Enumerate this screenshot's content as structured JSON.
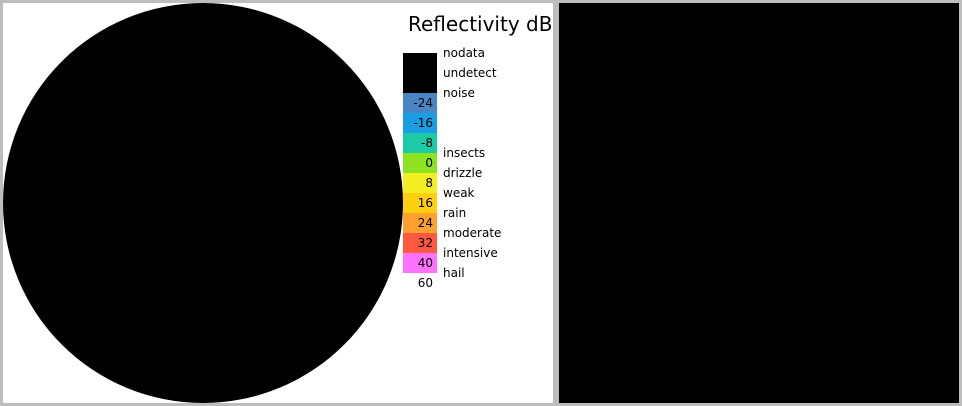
{
  "legend": {
    "title": "Reflectivity dB",
    "rows": [
      {
        "color": "#000000",
        "value": "",
        "label": "nodata"
      },
      {
        "color": "#000000",
        "value": "",
        "label": "undetect"
      },
      {
        "color": "#4a86c5",
        "value": "-24",
        "label": "noise"
      },
      {
        "color": "#1a9ee3",
        "value": "-16",
        "label": ""
      },
      {
        "color": "#1ccaa5",
        "value": "-8",
        "label": ""
      },
      {
        "color": "#8ee320",
        "value": "0",
        "label": "insects"
      },
      {
        "color": "#f2ee1f",
        "value": "8",
        "label": "drizzle"
      },
      {
        "color": "#ffcf10",
        "value": "16",
        "label": "weak"
      },
      {
        "color": "#ffa030",
        "value": "24",
        "label": "rain"
      },
      {
        "color": "#ff5a40",
        "value": "32",
        "label": "moderate"
      },
      {
        "color": "#ff72ff",
        "value": "40",
        "label": "intensive"
      }
    ],
    "bottom_tick": "60",
    "bottom_label": "hail"
  }
}
